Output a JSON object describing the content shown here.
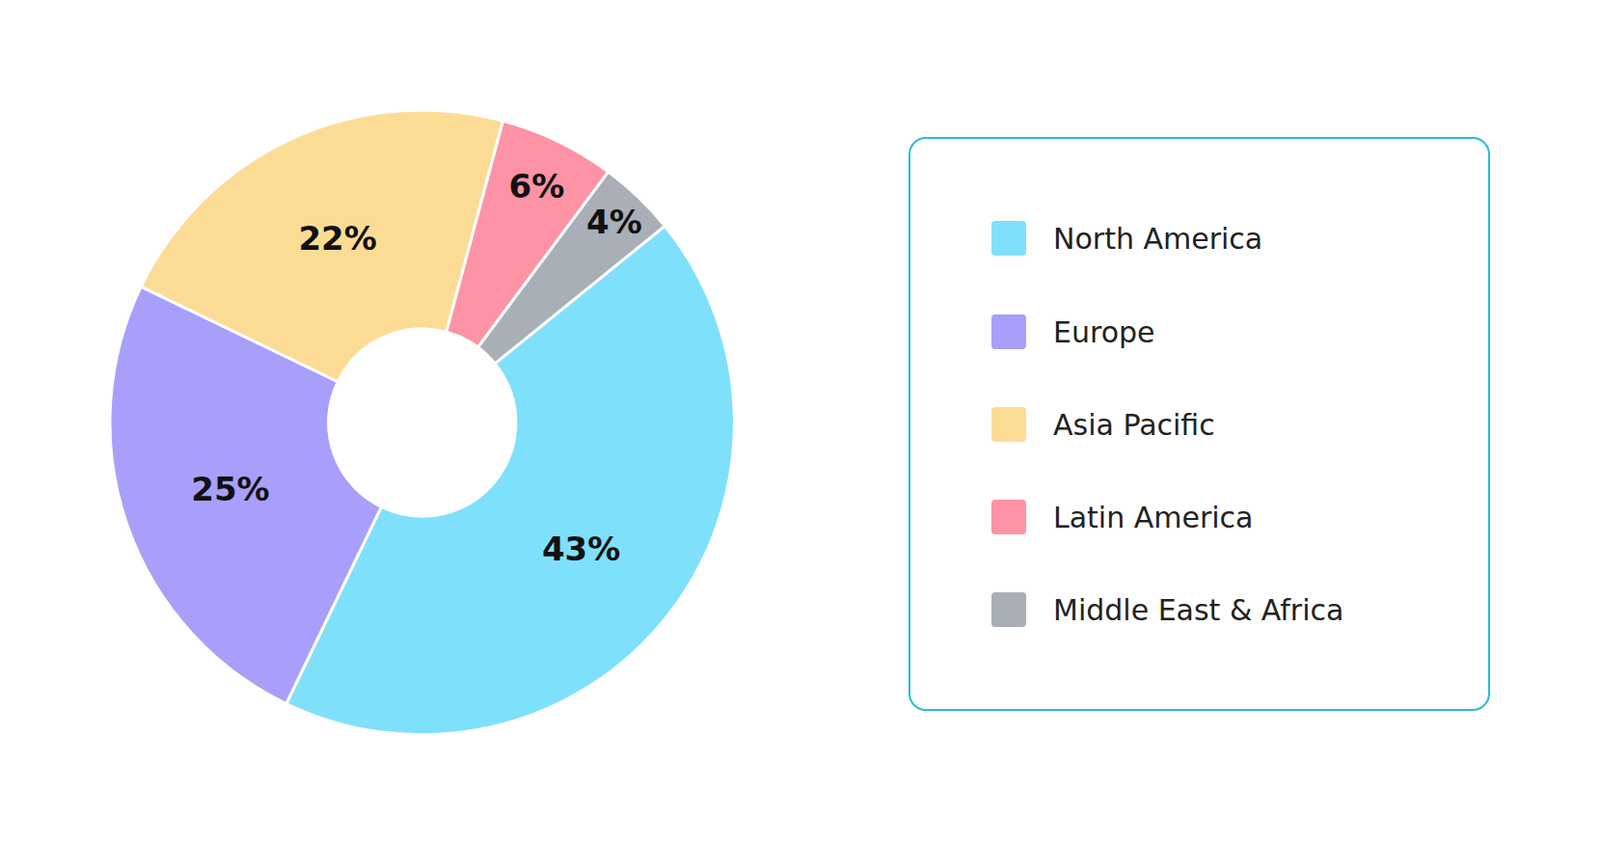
{
  "chart_data": {
    "type": "pie",
    "categories": [
      "North America",
      "Europe",
      "Asia Pacific",
      "Latin America",
      "Middle East & Africa"
    ],
    "values": [
      43,
      25,
      22,
      6,
      4
    ],
    "value_labels": [
      "43%",
      "25%",
      "22%",
      "6%",
      "4%"
    ],
    "colors": [
      "#7fe0fc",
      "#a89ffb",
      "#fcdc95",
      "#fd93a4",
      "#a9afb6"
    ],
    "data_labels": true,
    "legend": "right"
  }
}
